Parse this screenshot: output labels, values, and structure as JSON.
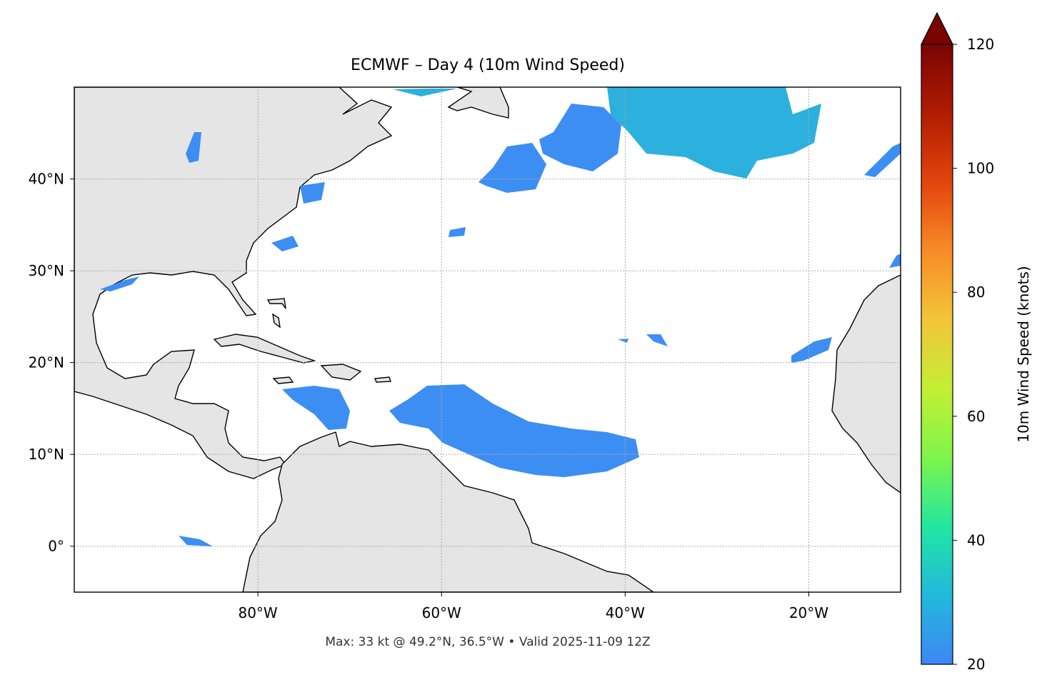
{
  "title": "ECMWF – Day 4 (10m Wind Speed)",
  "footer": "Max: 33 kt @ 49.2°N, 36.5°W • Valid 2025-11-09 12Z",
  "map": {
    "xlim": [
      -100,
      -10
    ],
    "ylim": [
      -5,
      50
    ],
    "xticks": [
      {
        "value": -80,
        "label": "80°W"
      },
      {
        "value": -60,
        "label": "60°W"
      },
      {
        "value": -40,
        "label": "40°W"
      },
      {
        "value": -20,
        "label": "20°W"
      }
    ],
    "yticks": [
      {
        "value": 0,
        "label": "0°"
      },
      {
        "value": 10,
        "label": "10°N"
      },
      {
        "value": 20,
        "label": "20°N"
      },
      {
        "value": 30,
        "label": "30°N"
      },
      {
        "value": 40,
        "label": "40°N"
      }
    ],
    "grid": true
  },
  "colorbar": {
    "label": "10m Wind Speed (knots)",
    "lim": [
      20,
      120
    ],
    "ticks": [
      20,
      40,
      60,
      80,
      100,
      120
    ],
    "colors": [
      "#3d86f5",
      "#22b9dc",
      "#22e6a0",
      "#7ef54a",
      "#c3ef34",
      "#f2c53a",
      "#f98b26",
      "#e2440d",
      "#b01c03",
      "#7a0403"
    ],
    "extend": "max"
  }
}
